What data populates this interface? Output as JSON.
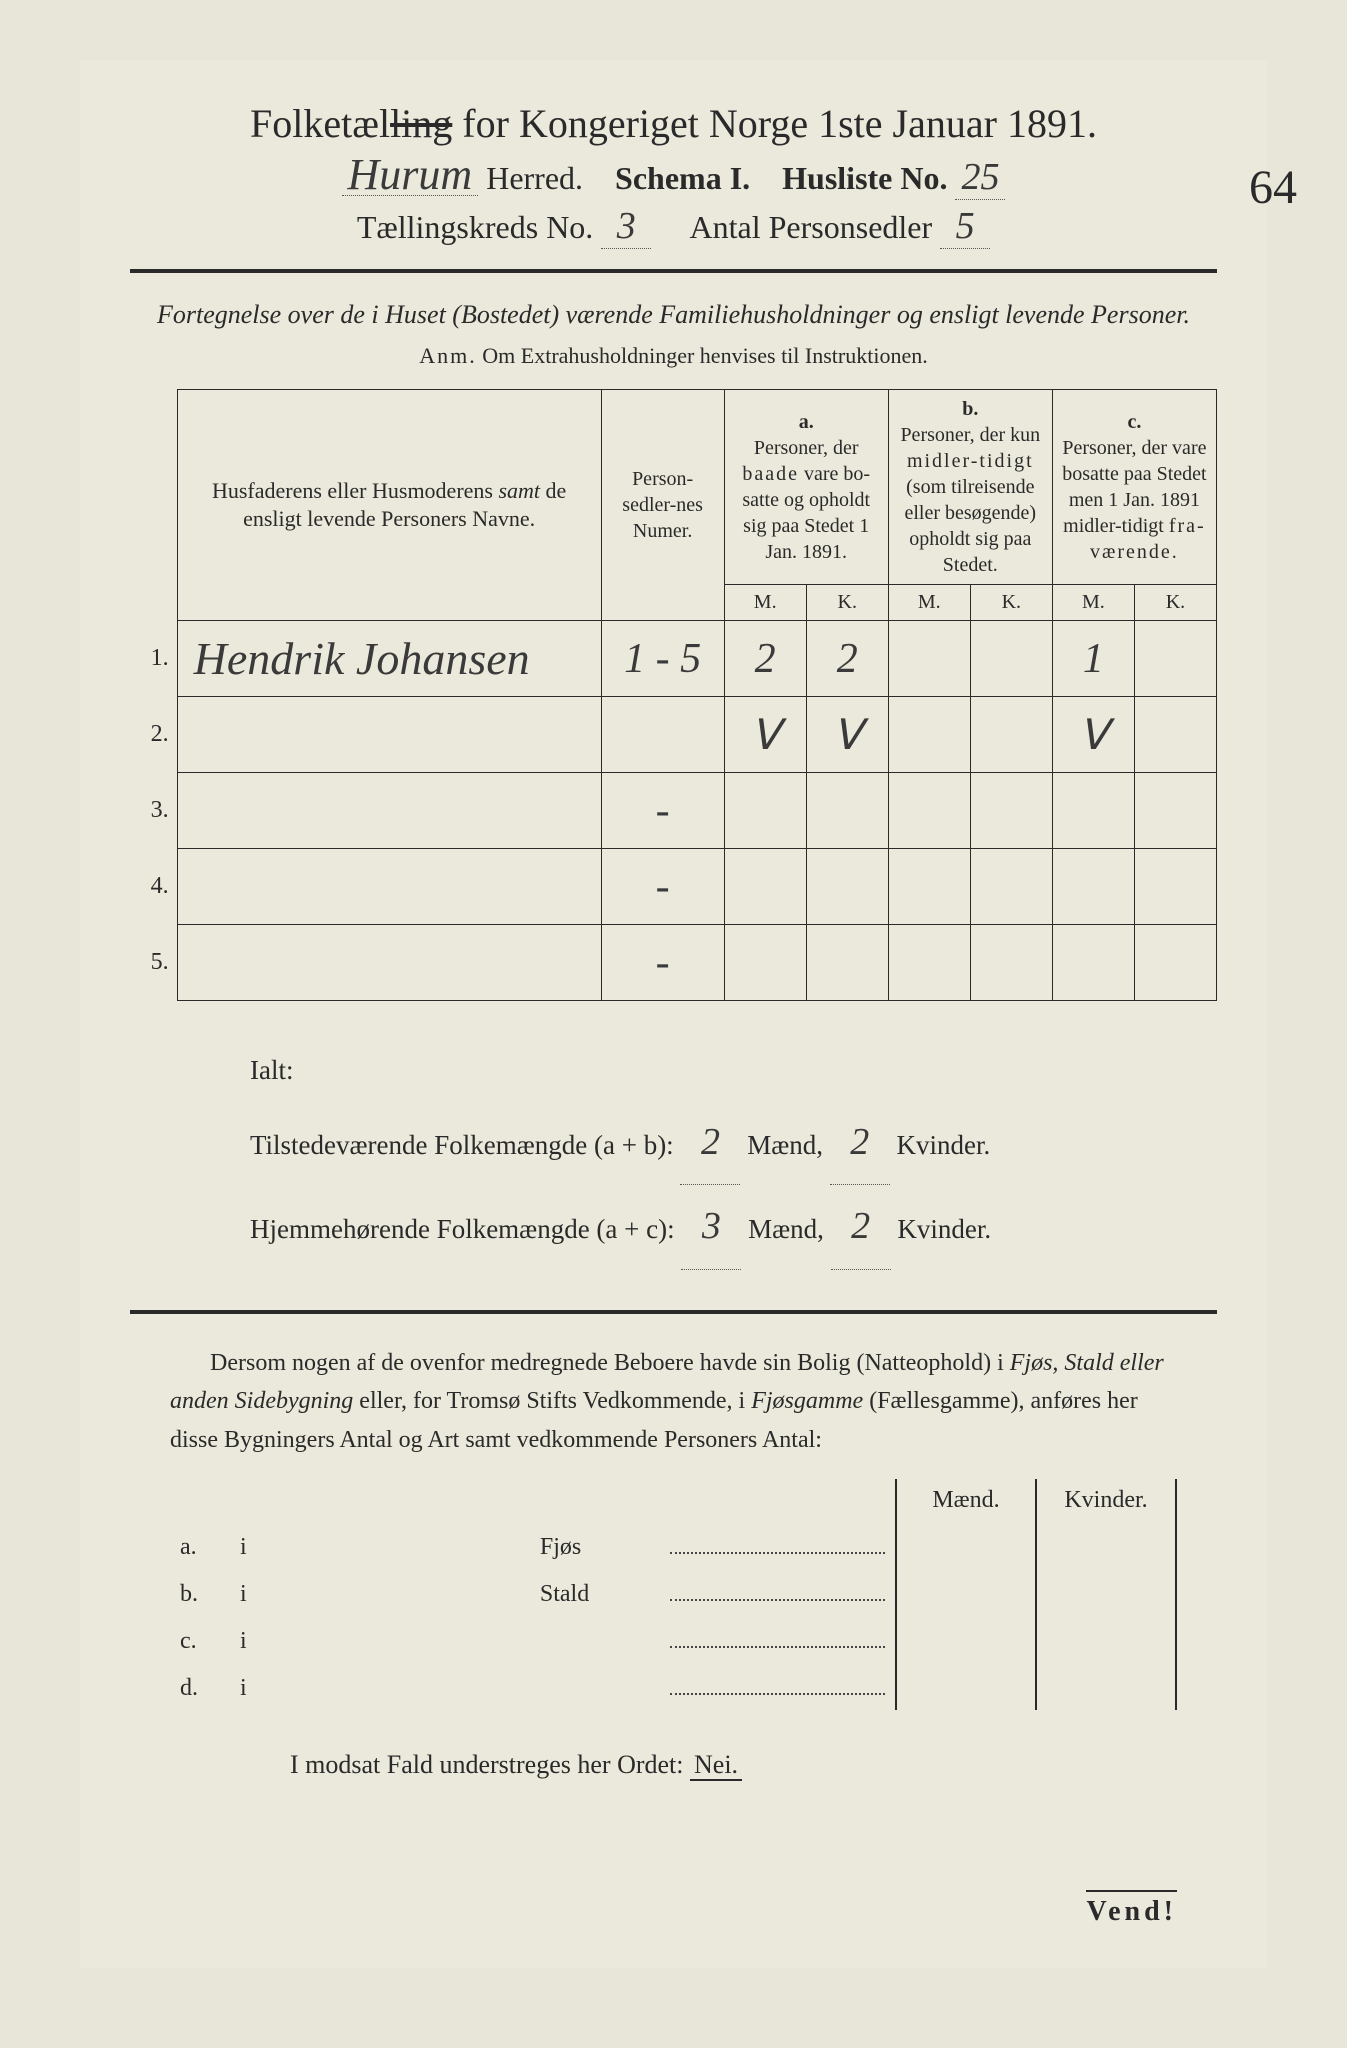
{
  "header": {
    "title_pre": "Folketæl",
    "title_strike": "ling",
    "title_post": " for Kongeriget Norge 1ste Januar 1891.",
    "herred_name": "Hurum",
    "herred_label": " Herred.",
    "schema": "Schema I.",
    "husliste_label": "Husliste No.",
    "husliste_no": "25",
    "margin_no": "64",
    "kreds_label": "Tællingskreds No.",
    "kreds_no": "3",
    "antal_label": "Antal Personsedler",
    "antal_no": "5"
  },
  "subtitle": "Fortegnelse over de i Huset (Bostedet) værende Familiehusholdninger og ensligt levende Personer.",
  "anm_label": "Anm.",
  "anm_text": " Om Extrahusholdninger henvises til Instruktionen.",
  "table": {
    "col_name": "Husfaderens eller Husmoderens samt de ensligt levende Personers Navne.",
    "col_numer": "Person-sedler-nes Numer.",
    "col_a_label": "a.",
    "col_a": "Personer, der baade vare bosatte og opholdt sig paa Stedet 1 Jan. 1891.",
    "col_b_label": "b.",
    "col_b": "Personer, der kun midlertidigt (som tilreisende eller besøgende) opholdt sig paa Stedet.",
    "col_c_label": "c.",
    "col_c": "Personer, der vare bosatte paa Stedet men 1 Jan. 1891 midlertidigt fraværende.",
    "m": "M.",
    "k": "K.",
    "rows": [
      {
        "n": "1.",
        "name": "Hendrik Johansen",
        "numer": "1 - 5",
        "aM": "2",
        "aK": "2",
        "bM": "",
        "bK": "",
        "cM": "1",
        "cK": ""
      },
      {
        "n": "2.",
        "name": "",
        "numer": "",
        "aM": "ⴸ",
        "aK": "ⴸ",
        "bM": "",
        "bK": "",
        "cM": "ⴸ",
        "cK": ""
      },
      {
        "n": "3.",
        "name": "",
        "numer": "-",
        "aM": "",
        "aK": "",
        "bM": "",
        "bK": "",
        "cM": "",
        "cK": ""
      },
      {
        "n": "4.",
        "name": "",
        "numer": "-",
        "aM": "",
        "aK": "",
        "bM": "",
        "bK": "",
        "cM": "",
        "cK": ""
      },
      {
        "n": "5.",
        "name": "",
        "numer": "-",
        "aM": "",
        "aK": "",
        "bM": "",
        "bK": "",
        "cM": "",
        "cK": ""
      }
    ]
  },
  "totals": {
    "ialt": "Ialt:",
    "line1_pre": "Tilstedeværende Folkemængde (a + b): ",
    "line1_m": "2",
    "line1_mid": " Mænd, ",
    "line1_k": "2",
    "line1_end": " Kvinder.",
    "line2_pre": "Hjemmehørende Folkemængde (a + c): ",
    "line2_m": "3",
    "line2_mid": " Mænd, ",
    "line2_k": "2",
    "line2_end": " Kvinder."
  },
  "para": "Dersom nogen af de ovenfor medregnede Beboere havde sin Bolig (Natteophold) i Fjøs, Stald eller anden Sidebygning eller, for Tromsø Stifts Vedkommende, i Fjøsgamme (Fællesgamme), anføres her disse Bygningers Antal og Art samt vedkommende Personers Antal:",
  "lodging": {
    "maend": "Mænd.",
    "kvinder": "Kvinder.",
    "rows": [
      {
        "l": "a.",
        "i": "i",
        "t": "Fjøs"
      },
      {
        "l": "b.",
        "i": "i",
        "t": "Stald"
      },
      {
        "l": "c.",
        "i": "i",
        "t": ""
      },
      {
        "l": "d.",
        "i": "i",
        "t": ""
      }
    ]
  },
  "nei": {
    "pre": "I modsat Fald understreges her Ordet: ",
    "word": "Nei."
  },
  "vend": "Vend!"
}
